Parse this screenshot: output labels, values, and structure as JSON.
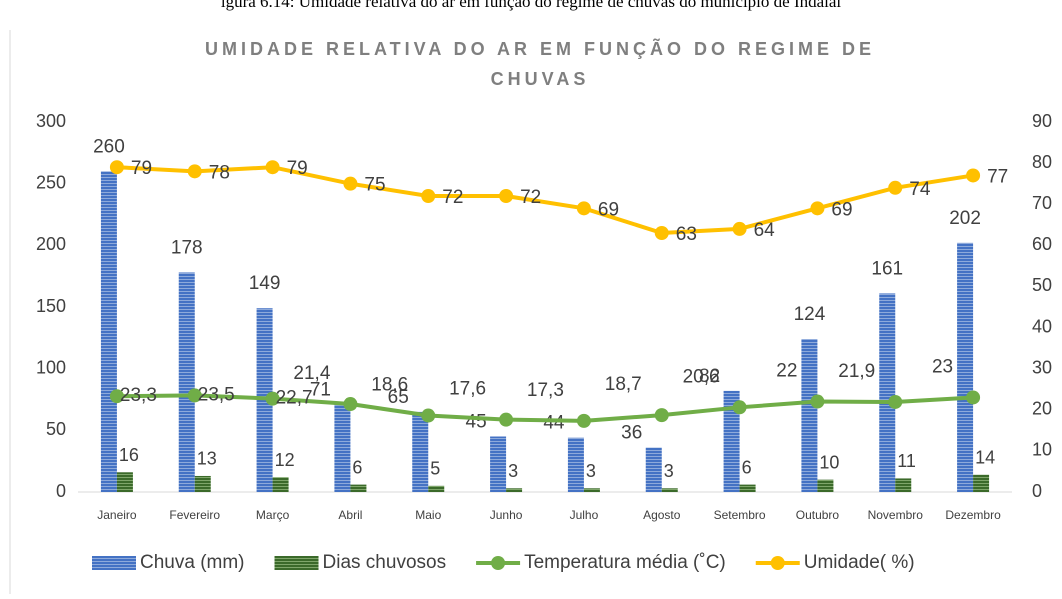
{
  "caption": "igura 6.14: Umidade relativa do ar em função do regime de chuvas do município de Indaial",
  "chart_data": {
    "type": "bar",
    "title": "UMIDADE RELATIVA DO AR EM FUNÇÃO DO REGIME DE CHUVAS",
    "categories": [
      "Janeiro",
      "Fevereiro",
      "Março",
      "Abril",
      "Maio",
      "Junho",
      "Julho",
      "Agosto",
      "Setembro",
      "Outubro",
      "Novembro",
      "Dezembro"
    ],
    "series": [
      {
        "name": "Chuva (mm)",
        "type": "bar",
        "color": "#4472c4",
        "values": [
          260,
          178,
          149,
          71,
          65,
          45,
          44,
          36,
          82,
          124,
          161,
          202
        ]
      },
      {
        "name": "Dias chuvosos",
        "type": "bar",
        "color": "#3b6a2a",
        "values": [
          16,
          13,
          12,
          6,
          5,
          3,
          3,
          3,
          6,
          10,
          11,
          14
        ]
      },
      {
        "name": "Temperatura média (˚C)",
        "type": "line",
        "axis": "y2",
        "color": "#70ad47",
        "values": [
          23.3,
          23.5,
          22.7,
          21.4,
          18.6,
          17.6,
          17.3,
          18.7,
          20.6,
          22,
          21.9,
          23
        ],
        "value_labels": [
          "23,3",
          "23,5",
          "22,7",
          "21,4",
          "18,6",
          "17,6",
          "17,3",
          "18,7",
          "20,6",
          "22",
          "21,9",
          "23"
        ]
      },
      {
        "name": "Umidade( %)",
        "type": "line",
        "axis": "y2",
        "color": "#ffc000",
        "values": [
          79,
          78,
          79,
          75,
          72,
          72,
          69,
          63,
          64,
          69,
          74,
          77
        ]
      }
    ],
    "ylim": [
      0,
      300
    ],
    "yticks": [
      0,
      50,
      100,
      150,
      200,
      250,
      300
    ],
    "y2lim": [
      0,
      90
    ],
    "y2ticks": [
      0,
      10,
      20,
      30,
      40,
      50,
      60,
      70,
      80,
      90
    ],
    "legend": "bottom"
  }
}
